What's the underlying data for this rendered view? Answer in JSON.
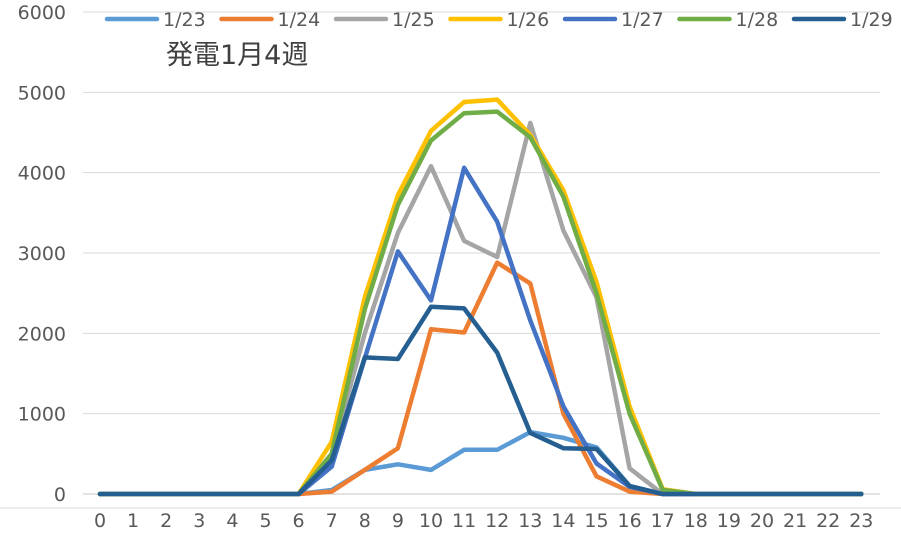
{
  "chart_data": {
    "type": "line",
    "title": "発電1月4週",
    "xlabel": "",
    "ylabel": "",
    "x": [
      "0",
      "1",
      "2",
      "3",
      "4",
      "5",
      "6",
      "7",
      "8",
      "9",
      "10",
      "11",
      "12",
      "13",
      "14",
      "15",
      "16",
      "17",
      "18",
      "19",
      "20",
      "21",
      "22",
      "23"
    ],
    "ylim": [
      0,
      6000
    ],
    "yticks": [
      0,
      1000,
      2000,
      3000,
      4000,
      5000,
      6000
    ],
    "grid": true,
    "legend_position": "top",
    "series": [
      {
        "name": "1/23",
        "color": "#5B9BD5",
        "values": [
          0,
          0,
          0,
          0,
          0,
          0,
          0,
          50,
          300,
          370,
          300,
          550,
          550,
          770,
          700,
          580,
          100,
          0,
          0,
          0,
          0,
          0,
          0,
          0
        ]
      },
      {
        "name": "1/24",
        "color": "#ED7D31",
        "values": [
          0,
          0,
          0,
          0,
          0,
          0,
          0,
          30,
          300,
          570,
          2050,
          2010,
          2880,
          2620,
          1000,
          220,
          30,
          0,
          0,
          0,
          0,
          0,
          0,
          0
        ]
      },
      {
        "name": "1/25",
        "color": "#A5A5A5",
        "values": [
          0,
          0,
          0,
          0,
          0,
          0,
          0,
          500,
          2000,
          3250,
          4080,
          3150,
          2950,
          4620,
          3280,
          2450,
          320,
          0,
          0,
          0,
          0,
          0,
          0,
          0
        ]
      },
      {
        "name": "1/26",
        "color": "#FFC000",
        "values": [
          0,
          0,
          0,
          0,
          0,
          0,
          0,
          650,
          2450,
          3720,
          4520,
          4880,
          4910,
          4470,
          3780,
          2640,
          1090,
          60,
          0,
          0,
          0,
          0,
          0,
          0
        ]
      },
      {
        "name": "1/27",
        "color": "#4472C4",
        "values": [
          0,
          0,
          0,
          0,
          0,
          0,
          0,
          340,
          1690,
          3020,
          2410,
          4060,
          3390,
          2160,
          1090,
          380,
          90,
          0,
          0,
          0,
          0,
          0,
          0,
          0
        ]
      },
      {
        "name": "1/28",
        "color": "#70AD47",
        "values": [
          0,
          0,
          0,
          0,
          0,
          0,
          0,
          500,
          2300,
          3600,
          4400,
          4740,
          4760,
          4440,
          3700,
          2500,
          1000,
          50,
          0,
          0,
          0,
          0,
          0,
          0
        ]
      },
      {
        "name": "1/29",
        "color": "#255E91",
        "values": [
          0,
          0,
          0,
          0,
          0,
          0,
          0,
          420,
          1700,
          1680,
          2330,
          2310,
          1760,
          760,
          570,
          560,
          100,
          0,
          0,
          0,
          0,
          0,
          0,
          0
        ]
      }
    ]
  }
}
